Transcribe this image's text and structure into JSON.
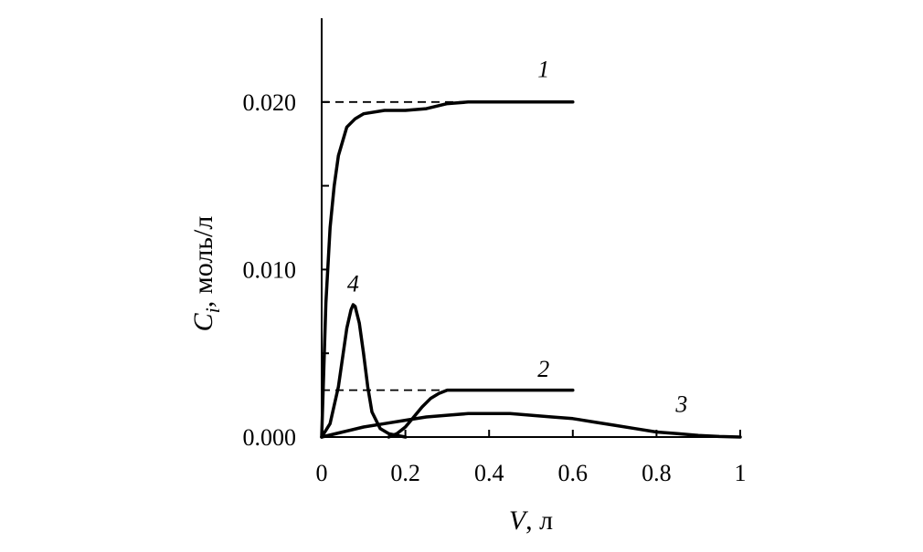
{
  "chart_data": {
    "type": "line",
    "xlabel_var": "V",
    "xlabel_unit": ", л",
    "ylabel_var": "C",
    "ylabel_sub": "i",
    "ylabel_unit": ", моль/л",
    "xlim": [
      0,
      1
    ],
    "ylim": [
      0,
      0.025
    ],
    "x_ticks": [
      {
        "value": 0,
        "label": "0"
      },
      {
        "value": 0.2,
        "label": "0.2"
      },
      {
        "value": 0.4,
        "label": "0.4"
      },
      {
        "value": 0.6,
        "label": "0.6"
      },
      {
        "value": 0.8,
        "label": "0.8"
      },
      {
        "value": 1,
        "label": "1"
      }
    ],
    "y_ticks": [
      {
        "value": 0,
        "label": "0.000"
      },
      {
        "value": 0.005,
        "label": ""
      },
      {
        "value": 0.01,
        "label": "0.010"
      },
      {
        "value": 0.015,
        "label": ""
      },
      {
        "value": 0.02,
        "label": "0.020"
      }
    ],
    "grid": false,
    "reference_lines": [
      {
        "y": 0.02,
        "x0": 0,
        "x1": 0.6,
        "style": "dashed"
      },
      {
        "y": 0.0028,
        "x0": 0,
        "x1": 0.6,
        "style": "dashed"
      }
    ],
    "series": [
      {
        "label": "1",
        "label_pos": {
          "x": 0.53,
          "y": 0.0215
        },
        "points": [
          [
            0,
            0
          ],
          [
            0.005,
            0.004
          ],
          [
            0.01,
            0.008
          ],
          [
            0.02,
            0.0125
          ],
          [
            0.03,
            0.015
          ],
          [
            0.04,
            0.0168
          ],
          [
            0.06,
            0.0185
          ],
          [
            0.08,
            0.019
          ],
          [
            0.1,
            0.0193
          ],
          [
            0.15,
            0.0195
          ],
          [
            0.2,
            0.0195
          ],
          [
            0.25,
            0.0196
          ],
          [
            0.3,
            0.0199
          ],
          [
            0.35,
            0.02
          ],
          [
            0.45,
            0.02
          ],
          [
            0.6,
            0.02
          ]
        ]
      },
      {
        "label": "2",
        "label_pos": {
          "x": 0.53,
          "y": 0.0036
        },
        "points": [
          [
            0.16,
            0
          ],
          [
            0.18,
            0.0002
          ],
          [
            0.2,
            0.0006
          ],
          [
            0.22,
            0.0012
          ],
          [
            0.24,
            0.0018
          ],
          [
            0.26,
            0.0023
          ],
          [
            0.28,
            0.0026
          ],
          [
            0.3,
            0.0028
          ],
          [
            0.35,
            0.0028
          ],
          [
            0.45,
            0.0028
          ],
          [
            0.6,
            0.0028
          ]
        ]
      },
      {
        "label": "3",
        "label_pos": {
          "x": 0.86,
          "y": 0.0015
        },
        "points": [
          [
            0,
            0
          ],
          [
            0.05,
            0.0003
          ],
          [
            0.1,
            0.0006
          ],
          [
            0.15,
            0.0008
          ],
          [
            0.2,
            0.001
          ],
          [
            0.25,
            0.0012
          ],
          [
            0.3,
            0.0013
          ],
          [
            0.35,
            0.0014
          ],
          [
            0.4,
            0.0014
          ],
          [
            0.45,
            0.0014
          ],
          [
            0.5,
            0.0013
          ],
          [
            0.55,
            0.0012
          ],
          [
            0.6,
            0.0011
          ],
          [
            0.65,
            0.0009
          ],
          [
            0.7,
            0.0007
          ],
          [
            0.75,
            0.0005
          ],
          [
            0.8,
            0.0003
          ],
          [
            0.85,
            0.0002
          ],
          [
            0.9,
            0.0001
          ],
          [
            0.95,
            3e-05
          ],
          [
            1.0,
            0
          ]
        ]
      },
      {
        "label": "4",
        "label_pos": {
          "x": 0.075,
          "y": 0.0087
        },
        "points": [
          [
            0,
            0
          ],
          [
            0.02,
            0.0008
          ],
          [
            0.04,
            0.003
          ],
          [
            0.06,
            0.0065
          ],
          [
            0.07,
            0.0076
          ],
          [
            0.075,
            0.0079
          ],
          [
            0.08,
            0.0078
          ],
          [
            0.09,
            0.0068
          ],
          [
            0.1,
            0.005
          ],
          [
            0.11,
            0.003
          ],
          [
            0.12,
            0.0015
          ],
          [
            0.14,
            0.0005
          ],
          [
            0.16,
            0.0002
          ],
          [
            0.18,
            0.0001
          ],
          [
            0.2,
            0
          ]
        ]
      }
    ]
  }
}
